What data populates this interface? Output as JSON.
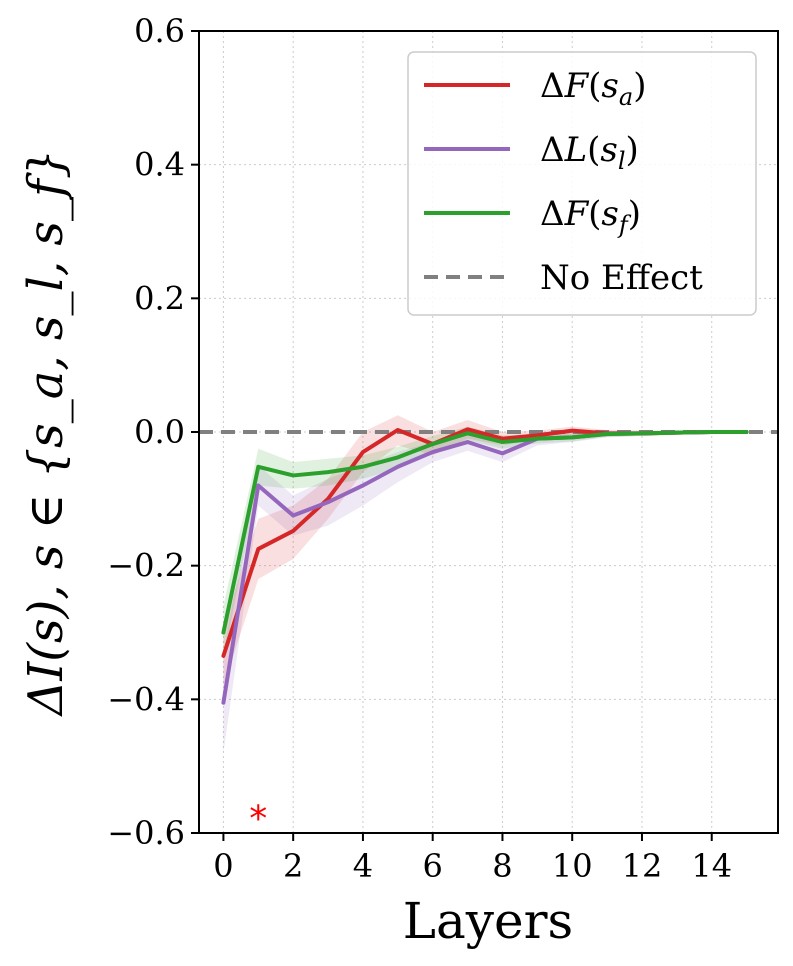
{
  "chart_data": {
    "type": "line",
    "title": "",
    "xlabel": "Layers",
    "ylabel": "ΔI(s),  s ∈ {s_a, s_l, s_f}",
    "xlim": [
      -0.7,
      15.9
    ],
    "ylim": [
      -0.6,
      0.6
    ],
    "xticks": [
      0,
      2,
      4,
      6,
      8,
      10,
      12,
      14
    ],
    "yticks": [
      -0.6,
      -0.4,
      -0.2,
      0.0,
      0.2,
      0.4,
      0.6
    ],
    "ytick_labels": [
      "−0.6",
      "−0.4",
      "−0.2",
      "0.0",
      "0.2",
      "0.4",
      "0.6"
    ],
    "grid": true,
    "legend_position": "top-right",
    "x": [
      0,
      1,
      2,
      3,
      4,
      5,
      6,
      7,
      8,
      9,
      10,
      11,
      12,
      13,
      14,
      15
    ],
    "series": [
      {
        "name": "ΔF(s_a)",
        "color": "#d62728",
        "values": [
          -0.335,
          -0.175,
          -0.148,
          -0.1,
          -0.03,
          0.003,
          -0.018,
          0.004,
          -0.01,
          -0.005,
          0.002,
          -0.002,
          -0.002,
          -0.001,
          0.0,
          0.0
        ],
        "lower": [
          -0.38,
          -0.22,
          -0.19,
          -0.13,
          -0.06,
          -0.02,
          -0.035,
          -0.01,
          -0.02,
          -0.012,
          -0.006,
          -0.007,
          -0.006,
          -0.004,
          -0.003,
          -0.003
        ],
        "upper": [
          -0.29,
          -0.13,
          -0.11,
          -0.07,
          0.0,
          0.025,
          0.0,
          0.018,
          0.0,
          0.002,
          0.008,
          0.003,
          0.002,
          0.002,
          0.003,
          0.003
        ]
      },
      {
        "name": "ΔL(s_l)",
        "color": "#9467bd",
        "values": [
          -0.405,
          -0.08,
          -0.125,
          -0.105,
          -0.08,
          -0.052,
          -0.03,
          -0.015,
          -0.032,
          -0.01,
          -0.008,
          -0.003,
          -0.002,
          -0.001,
          0.0,
          0.0
        ],
        "lower": [
          -0.48,
          -0.11,
          -0.155,
          -0.14,
          -0.11,
          -0.075,
          -0.045,
          -0.028,
          -0.045,
          -0.02,
          -0.015,
          -0.008,
          -0.006,
          -0.004,
          -0.003,
          -0.003
        ],
        "upper": [
          -0.33,
          -0.05,
          -0.095,
          -0.07,
          -0.05,
          -0.03,
          -0.015,
          -0.002,
          -0.02,
          0.0,
          0.0,
          0.002,
          0.002,
          0.002,
          0.003,
          0.003
        ]
      },
      {
        "name": "ΔF(s_f)",
        "color": "#2ca02c",
        "values": [
          -0.3,
          -0.052,
          -0.065,
          -0.06,
          -0.052,
          -0.038,
          -0.018,
          -0.002,
          -0.015,
          -0.01,
          -0.008,
          -0.003,
          -0.002,
          -0.001,
          0.0,
          0.0
        ],
        "lower": [
          -0.34,
          -0.08,
          -0.085,
          -0.08,
          -0.07,
          -0.055,
          -0.03,
          -0.012,
          -0.025,
          -0.017,
          -0.014,
          -0.007,
          -0.005,
          -0.004,
          -0.003,
          -0.003
        ],
        "upper": [
          -0.26,
          -0.025,
          -0.045,
          -0.04,
          -0.035,
          -0.022,
          -0.006,
          0.008,
          -0.005,
          -0.003,
          -0.002,
          0.001,
          0.001,
          0.002,
          0.003,
          0.003
        ]
      }
    ],
    "reference_line": {
      "name": "No Effect",
      "value": 0.0,
      "color": "#808080",
      "style": "dashed"
    },
    "annotations": [
      {
        "text": "*",
        "x": 1,
        "y": -0.56,
        "color": "#ff0000"
      }
    ]
  }
}
